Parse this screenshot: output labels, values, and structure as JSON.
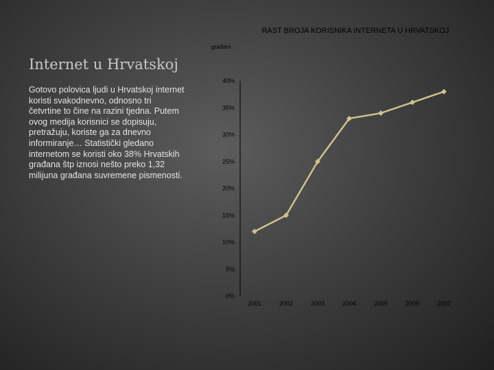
{
  "slide": {
    "title": "Internet u Hrvatskoj",
    "body": "Gotovo polovica ljudi u Hrvatskoj internet koristi svakodnevno, odnosno tri četvrtine to čine na razini tjedna. Putem ovog medija korisnici se dopisuju, pretražuju, koriste ga za dnevno informiranje… Statistički gledano internetom se koristi oko 38% Hrvatskih građana štp iznosi nešto preko 1,32 milijuna građana suvremene pismenosti."
  },
  "chart_data": {
    "type": "line",
    "title": "RAST BROJA KORISNIKA INTERNETA U HRVATSKOJ",
    "subtitle": "građani",
    "categories": [
      "2001",
      "2002",
      "2003",
      "2004",
      "2005",
      "2006",
      "2007"
    ],
    "series": [
      {
        "values": [
          12,
          15,
          25,
          33,
          34,
          36,
          38
        ],
        "color": "#cfc18f"
      }
    ],
    "ylim": [
      0,
      40
    ],
    "yticks": [
      "0%",
      "5%",
      "10%",
      "15%",
      "20%",
      "25%",
      "30%",
      "35%",
      "40%"
    ],
    "grid": false
  }
}
